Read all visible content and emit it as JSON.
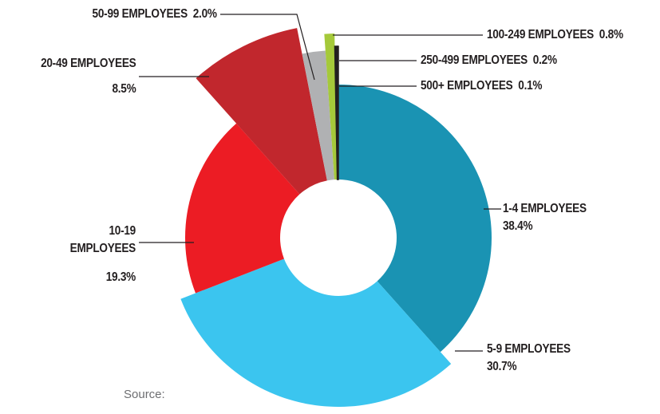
{
  "chart_data": {
    "type": "donut",
    "categories": [
      "1-4 EMPLOYEES",
      "5-9 EMPLOYEES",
      "10-19 EMPLOYEES",
      "20-49 EMPLOYEES",
      "50-99 EMPLOYEES",
      "100-249 EMPLOYEES",
      "250-499 EMPLOYEES",
      "500+ EMPLOYEES"
    ],
    "values": [
      38.4,
      30.7,
      19.3,
      8.5,
      2.0,
      0.8,
      0.2,
      0.1
    ],
    "value_labels": [
      "38.4%",
      "30.7%",
      "19.3%",
      "8.5%",
      "2.0%",
      "0.8%",
      "0.2%",
      "0.1%"
    ],
    "colors": [
      "#1a93b3",
      "#3bc5ef",
      "#ec1c24",
      "#c1272d",
      "#b0b1b3",
      "#a5c93a",
      "#231f20",
      "#231f20"
    ]
  },
  "source": "Source:"
}
